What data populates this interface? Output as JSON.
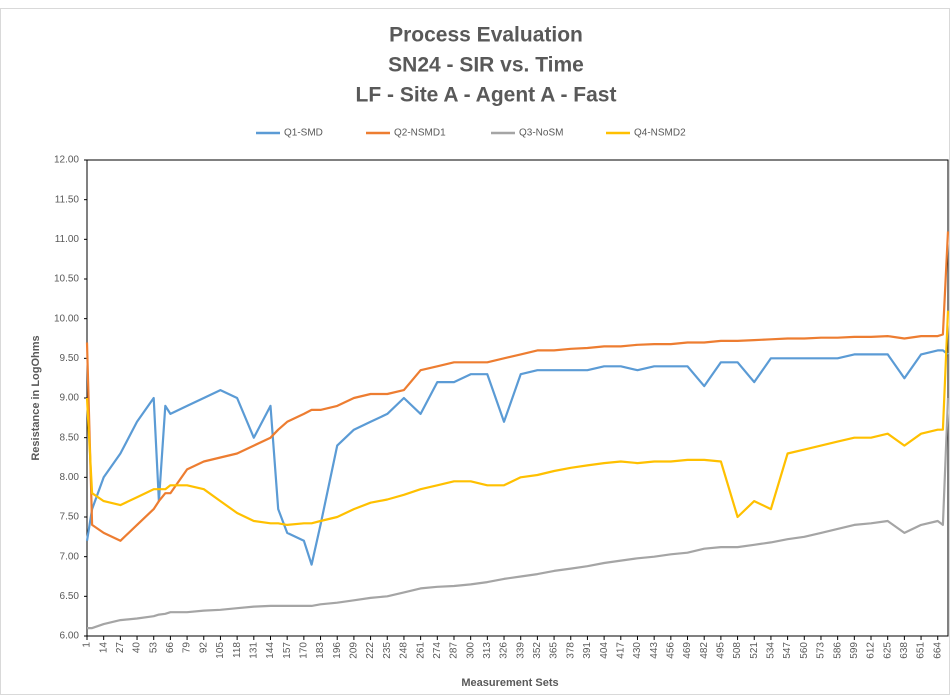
{
  "chart_data": {
    "type": "line",
    "title": [
      "Process Evaluation",
      "SN24 - SIR vs. Time",
      "LF - Site A - Agent A - Fast"
    ],
    "x_label": "Measurement Sets",
    "y_label": "Resistance in LogOhms",
    "legend": "top",
    "grid": false,
    "xlim": [
      1,
      672
    ],
    "xticks": [
      1,
      14,
      27,
      40,
      53,
      66,
      79,
      92,
      105,
      118,
      131,
      144,
      157,
      170,
      183,
      196,
      209,
      222,
      235,
      248,
      261,
      274,
      287,
      300,
      313,
      326,
      339,
      352,
      365,
      378,
      391,
      404,
      417,
      430,
      443,
      456,
      469,
      482,
      495,
      508,
      521,
      534,
      547,
      560,
      573,
      586,
      599,
      612,
      625,
      638,
      651,
      664
    ],
    "ylim": [
      6,
      12
    ],
    "yticks": [
      {
        "value": 6,
        "label": "6.00"
      },
      {
        "value": 6.5,
        "label": "6.50"
      },
      {
        "value": 7,
        "label": "7.00"
      },
      {
        "value": 7.5,
        "label": "7.50"
      },
      {
        "value": 8,
        "label": "8.00"
      },
      {
        "value": 8.5,
        "label": "8.50"
      },
      {
        "value": 9,
        "label": "9.00"
      },
      {
        "value": 9.5,
        "label": "9.50"
      },
      {
        "value": 10,
        "label": "10.00"
      },
      {
        "value": 10.5,
        "label": "10.50"
      },
      {
        "value": 11,
        "label": "11.00"
      },
      {
        "value": 11.5,
        "label": "11.50"
      },
      {
        "value": 12,
        "label": "12.00"
      }
    ],
    "x": [
      1,
      5,
      14,
      27,
      40,
      53,
      57,
      62,
      66,
      79,
      92,
      105,
      118,
      131,
      144,
      150,
      157,
      170,
      176,
      183,
      196,
      209,
      222,
      235,
      248,
      261,
      274,
      287,
      300,
      313,
      326,
      339,
      352,
      365,
      378,
      391,
      404,
      417,
      430,
      443,
      456,
      469,
      482,
      495,
      508,
      521,
      534,
      547,
      560,
      573,
      586,
      599,
      612,
      625,
      638,
      651,
      664,
      668,
      672
    ],
    "series": [
      {
        "name": "Q1-SMD",
        "color": "#5b9bd5",
        "values": [
          7.2,
          7.6,
          8.0,
          8.3,
          8.7,
          9.0,
          7.7,
          8.9,
          8.8,
          8.9,
          9.0,
          9.1,
          9.0,
          8.5,
          8.9,
          7.6,
          7.3,
          7.2,
          6.9,
          7.4,
          8.4,
          8.6,
          8.7,
          8.8,
          9.0,
          8.8,
          9.2,
          9.2,
          9.3,
          9.3,
          8.7,
          9.3,
          9.35,
          9.35,
          9.35,
          9.35,
          9.4,
          9.4,
          9.35,
          9.4,
          9.4,
          9.4,
          9.15,
          9.45,
          9.45,
          9.2,
          9.5,
          9.5,
          9.5,
          9.5,
          9.5,
          9.55,
          9.55,
          9.55,
          9.25,
          9.55,
          9.6,
          9.6,
          9.55
        ]
      },
      {
        "name": "Q2-NSMD1",
        "color": "#ed7d31",
        "values": [
          9.7,
          7.4,
          7.3,
          7.2,
          7.4,
          7.6,
          7.7,
          7.8,
          7.8,
          8.1,
          8.2,
          8.25,
          8.3,
          8.4,
          8.5,
          8.6,
          8.7,
          8.8,
          8.85,
          8.85,
          8.9,
          9.0,
          9.05,
          9.05,
          9.1,
          9.35,
          9.4,
          9.45,
          9.45,
          9.45,
          9.5,
          9.55,
          9.6,
          9.6,
          9.62,
          9.63,
          9.65,
          9.65,
          9.67,
          9.68,
          9.68,
          9.7,
          9.7,
          9.72,
          9.72,
          9.73,
          9.74,
          9.75,
          9.75,
          9.76,
          9.76,
          9.77,
          9.77,
          9.78,
          9.75,
          9.78,
          9.78,
          9.8,
          11.1
        ]
      },
      {
        "name": "Q3-NoSM",
        "color": "#a5a5a5",
        "values": [
          6.1,
          6.1,
          6.15,
          6.2,
          6.22,
          6.25,
          6.27,
          6.28,
          6.3,
          6.3,
          6.32,
          6.33,
          6.35,
          6.37,
          6.38,
          6.38,
          6.38,
          6.38,
          6.38,
          6.4,
          6.42,
          6.45,
          6.48,
          6.5,
          6.55,
          6.6,
          6.62,
          6.63,
          6.65,
          6.68,
          6.72,
          6.75,
          6.78,
          6.82,
          6.85,
          6.88,
          6.92,
          6.95,
          6.98,
          7.0,
          7.03,
          7.05,
          7.1,
          7.12,
          7.12,
          7.15,
          7.18,
          7.22,
          7.25,
          7.3,
          7.35,
          7.4,
          7.42,
          7.45,
          7.3,
          7.4,
          7.45,
          7.4,
          9.0
        ]
      },
      {
        "name": "Q4-NSMD2",
        "color": "#ffc000",
        "values": [
          9.0,
          7.8,
          7.7,
          7.65,
          7.75,
          7.85,
          7.85,
          7.85,
          7.9,
          7.9,
          7.85,
          7.7,
          7.55,
          7.45,
          7.42,
          7.42,
          7.4,
          7.42,
          7.42,
          7.45,
          7.5,
          7.6,
          7.68,
          7.72,
          7.78,
          7.85,
          7.9,
          7.95,
          7.95,
          7.9,
          7.9,
          8.0,
          8.03,
          8.08,
          8.12,
          8.15,
          8.18,
          8.2,
          8.18,
          8.2,
          8.2,
          8.22,
          8.22,
          8.2,
          7.5,
          7.7,
          7.6,
          8.3,
          8.35,
          8.4,
          8.45,
          8.5,
          8.5,
          8.55,
          8.4,
          8.55,
          8.6,
          8.6,
          10.1
        ]
      }
    ]
  }
}
